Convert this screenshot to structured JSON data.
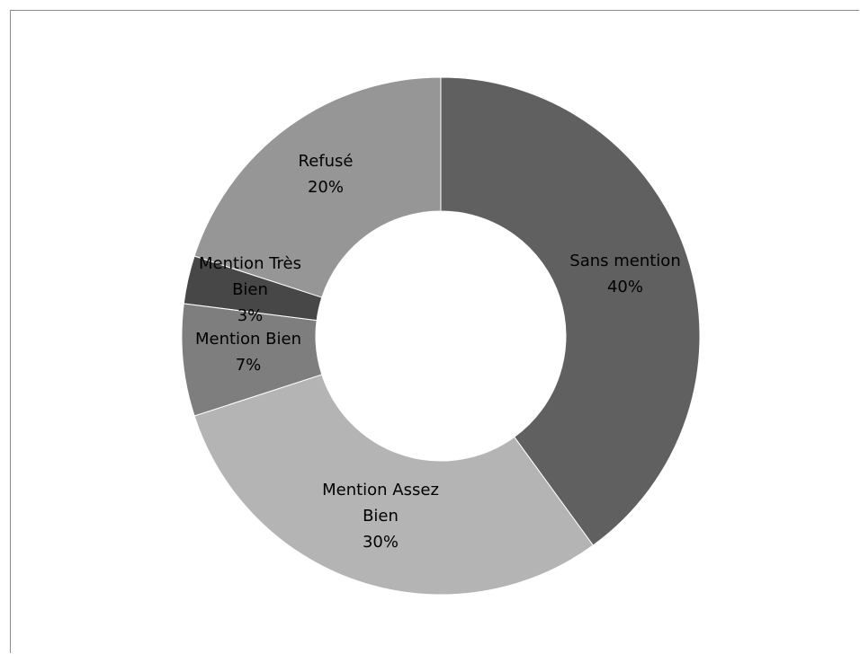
{
  "chart_data": {
    "type": "pie",
    "title": "",
    "categories": [
      "Sans mention",
      "Mention Assez Bien",
      "Mention Bien",
      "Mention Très Bien",
      "Refusé"
    ],
    "values": [
      40,
      30,
      7,
      3,
      20
    ],
    "value_labels": [
      "40%",
      "30%",
      "7%",
      "3%",
      "20%"
    ],
    "label_lines": [
      [
        "Sans mention",
        "40%"
      ],
      [
        "Mention Assez",
        "Bien",
        "30%"
      ],
      [
        "Mention Bien",
        "7%"
      ],
      [
        "Mention Très",
        "Bien",
        "3%"
      ],
      [
        "Refusé",
        "20%"
      ]
    ],
    "colors": [
      "#606060",
      "#b4b4b4",
      "#7e7e7e",
      "#474747",
      "#969696"
    ],
    "donut": true,
    "legend": "none",
    "grid": false
  }
}
